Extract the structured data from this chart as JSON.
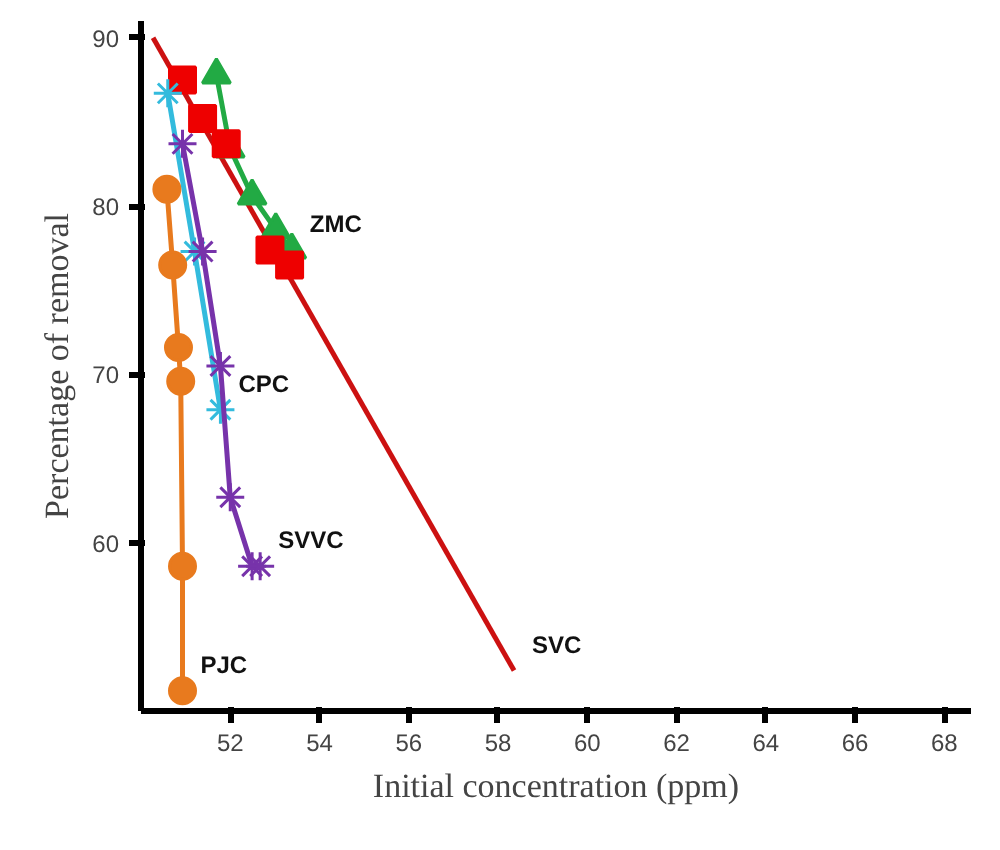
{
  "chart_data": {
    "type": "line",
    "xlabel": "Initial concentration (ppm)",
    "ylabel": "Percentage of removal",
    "xlim": [
      50,
      68.6
    ],
    "ylim": [
      50,
      91
    ],
    "xticks": [
      52,
      54,
      56,
      58,
      60,
      62,
      64,
      66,
      68
    ],
    "yticks": [
      60,
      70,
      80,
      90
    ],
    "grid": false,
    "series": [
      {
        "name": "SVC",
        "color": "#cc1111",
        "marker": "none",
        "x": [
          50.27,
          58.36
        ],
        "values": [
          90,
          52.4
        ]
      },
      {
        "name": "ZMC",
        "color": "#22aa44",
        "marker": "triangle",
        "x": [
          51.69,
          52.0,
          52.49,
          53.02,
          53.38
        ],
        "values": [
          87.8,
          83.4,
          80.6,
          78.6,
          77.4
        ]
      },
      {
        "type": "scatter",
        "color": "#ee0000",
        "marker": "square",
        "x": [
          50.93,
          51.38,
          51.91,
          52.89,
          53.33
        ],
        "values": [
          87.5,
          85.2,
          83.7,
          77.4,
          76.5
        ]
      },
      {
        "name": "CPC",
        "color": "#33bbdd",
        "marker": "cross",
        "x": [
          50.6,
          51.2,
          51.78
        ],
        "values": [
          86.7,
          77.3,
          67.9
        ]
      },
      {
        "name": "SVVC",
        "color": "#7733aa",
        "marker": "cross",
        "x": [
          50.93,
          51.38,
          51.78,
          52.0,
          52.49,
          52.67
        ],
        "values": [
          83.7,
          77.3,
          70.5,
          62.7,
          58.6,
          58.6
        ]
      },
      {
        "name": "PJC",
        "color": "#e87a1e",
        "marker": "circle",
        "x": [
          50.58,
          50.71,
          50.84,
          50.89,
          50.93,
          50.93
        ],
        "values": [
          81.0,
          76.5,
          71.6,
          69.6,
          58.6,
          51.2
        ]
      }
    ]
  }
}
